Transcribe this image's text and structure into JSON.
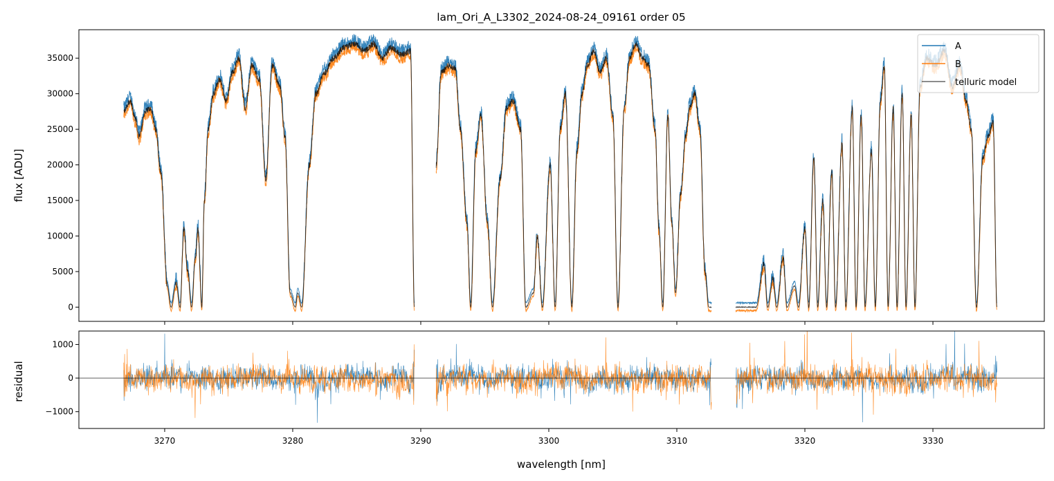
{
  "chart_data": [
    {
      "type": "line",
      "title": "lam_Ori_A_L3302_2024-08-24_09161  order 05",
      "xlabel": "",
      "ylabel": "flux [ADU]",
      "xlim": [
        3263.3,
        3338.7
      ],
      "ylim": [
        -2000,
        39000
      ],
      "y_ticks": [
        0,
        5000,
        10000,
        15000,
        20000,
        25000,
        30000,
        35000
      ],
      "y_tick_labels": [
        "0",
        "5000",
        "10000",
        "15000",
        "20000",
        "25000",
        "30000",
        "35000"
      ],
      "x_ticks": [
        3270,
        3280,
        3290,
        3300,
        3310,
        3320,
        3330
      ],
      "legend_position": "top-right",
      "legend": [
        "A",
        "B",
        "telluric model"
      ],
      "gaps_nm": [
        [
          3289.5,
          3291.2
        ],
        [
          3312.7,
          3314.6
        ]
      ],
      "series": [
        {
          "name": "A",
          "color": "#1f77b4"
        },
        {
          "name": "B",
          "color": "#ff7f0e"
        },
        {
          "name": "telluric model",
          "color": "#000000"
        }
      ],
      "model_points": [
        [
          3266.8,
          27500
        ],
        [
          3267.3,
          29000
        ],
        [
          3267.7,
          26500
        ],
        [
          3268.0,
          24000
        ],
        [
          3268.5,
          27500
        ],
        [
          3268.9,
          28000
        ],
        [
          3269.3,
          25000
        ],
        [
          3269.7,
          19000
        ],
        [
          3270.2,
          3000
        ],
        [
          3270.5,
          0
        ],
        [
          3270.9,
          3500
        ],
        [
          3271.2,
          0
        ],
        [
          3271.5,
          11000
        ],
        [
          3271.8,
          5000
        ],
        [
          3272.1,
          0
        ],
        [
          3272.4,
          7000
        ],
        [
          3272.6,
          11000
        ],
        [
          3272.9,
          0
        ],
        [
          3273.1,
          15000
        ],
        [
          3273.4,
          25000
        ],
        [
          3273.8,
          30000
        ],
        [
          3274.3,
          32000
        ],
        [
          3274.8,
          29000
        ],
        [
          3275.3,
          33000
        ],
        [
          3275.8,
          35000
        ],
        [
          3276.3,
          28000
        ],
        [
          3276.8,
          34000
        ],
        [
          3277.4,
          32000
        ],
        [
          3277.9,
          18000
        ],
        [
          3278.4,
          34000
        ],
        [
          3279.0,
          31000
        ],
        [
          3279.4,
          24000
        ],
        [
          3279.8,
          2000
        ],
        [
          3280.2,
          0
        ],
        [
          3280.4,
          2000
        ],
        [
          3280.7,
          0
        ],
        [
          3281.3,
          20000
        ],
        [
          3281.8,
          30000
        ],
        [
          3282.5,
          33000
        ],
        [
          3283.2,
          35000
        ],
        [
          3284.0,
          36500
        ],
        [
          3284.8,
          37000
        ],
        [
          3285.6,
          36000
        ],
        [
          3286.3,
          37000
        ],
        [
          3287.0,
          35000
        ],
        [
          3287.7,
          36500
        ],
        [
          3288.5,
          35500
        ],
        [
          3289.2,
          36000
        ],
        [
          3289.5,
          0
        ],
        [
          3291.2,
          20000
        ],
        [
          3291.6,
          33000
        ],
        [
          3292.2,
          34000
        ],
        [
          3292.7,
          33500
        ],
        [
          3293.1,
          25000
        ],
        [
          3293.6,
          12000
        ],
        [
          3293.9,
          0
        ],
        [
          3294.3,
          22000
        ],
        [
          3294.7,
          27000
        ],
        [
          3295.2,
          12000
        ],
        [
          3295.6,
          0
        ],
        [
          3296.2,
          18000
        ],
        [
          3296.7,
          28000
        ],
        [
          3297.2,
          29000
        ],
        [
          3297.8,
          25000
        ],
        [
          3298.2,
          0
        ],
        [
          3298.8,
          2000
        ],
        [
          3299.1,
          10000
        ],
        [
          3299.5,
          0
        ],
        [
          3300.1,
          20000
        ],
        [
          3300.5,
          0
        ],
        [
          3300.9,
          25000
        ],
        [
          3301.3,
          30000
        ],
        [
          3301.8,
          0
        ],
        [
          3302.2,
          22000
        ],
        [
          3302.6,
          30000
        ],
        [
          3303.0,
          34000
        ],
        [
          3303.5,
          36000
        ],
        [
          3304.0,
          33000
        ],
        [
          3304.5,
          35000
        ],
        [
          3305.0,
          27000
        ],
        [
          3305.4,
          0
        ],
        [
          3305.9,
          28000
        ],
        [
          3306.3,
          35000
        ],
        [
          3306.8,
          37000
        ],
        [
          3307.3,
          35000
        ],
        [
          3307.8,
          34000
        ],
        [
          3308.3,
          25000
        ],
        [
          3308.6,
          11000
        ],
        [
          3308.9,
          0
        ],
        [
          3309.3,
          27000
        ],
        [
          3309.6,
          12000
        ],
        [
          3309.9,
          2000
        ],
        [
          3310.3,
          16000
        ],
        [
          3310.7,
          24000
        ],
        [
          3311.0,
          28000
        ],
        [
          3311.4,
          30000
        ],
        [
          3311.8,
          25000
        ],
        [
          3312.2,
          5000
        ],
        [
          3312.5,
          0
        ],
        [
          3312.7,
          0
        ],
        [
          3314.6,
          0
        ],
        [
          3315.5,
          0
        ],
        [
          3316.2,
          0
        ],
        [
          3316.8,
          6000
        ],
        [
          3317.1,
          0
        ],
        [
          3317.5,
          4000
        ],
        [
          3317.8,
          0
        ],
        [
          3318.3,
          7000
        ],
        [
          3318.6,
          0
        ],
        [
          3319.2,
          3000
        ],
        [
          3319.5,
          0
        ],
        [
          3320.0,
          11000
        ],
        [
          3320.3,
          0
        ],
        [
          3320.7,
          21000
        ],
        [
          3321.0,
          0
        ],
        [
          3321.4,
          15000
        ],
        [
          3321.7,
          0
        ],
        [
          3322.1,
          19000
        ],
        [
          3322.4,
          0
        ],
        [
          3322.9,
          23000
        ],
        [
          3323.2,
          0
        ],
        [
          3323.7,
          28000
        ],
        [
          3324.0,
          0
        ],
        [
          3324.4,
          27000
        ],
        [
          3324.7,
          0
        ],
        [
          3325.2,
          22000
        ],
        [
          3325.5,
          0
        ],
        [
          3325.9,
          29000
        ],
        [
          3326.2,
          34000
        ],
        [
          3326.5,
          0
        ],
        [
          3326.9,
          28000
        ],
        [
          3327.2,
          0
        ],
        [
          3327.6,
          30000
        ],
        [
          3327.9,
          0
        ],
        [
          3328.3,
          27000
        ],
        [
          3328.6,
          0
        ],
        [
          3329.0,
          31000
        ],
        [
          3329.5,
          35000
        ],
        [
          3330.2,
          34000
        ],
        [
          3330.9,
          36000
        ],
        [
          3331.5,
          31000
        ],
        [
          3332.1,
          34000
        ],
        [
          3332.6,
          29000
        ],
        [
          3333.0,
          25000
        ],
        [
          3333.4,
          0
        ],
        [
          3333.9,
          21000
        ],
        [
          3334.3,
          24000
        ],
        [
          3334.7,
          26000
        ],
        [
          3335.0,
          0
        ]
      ]
    },
    {
      "type": "line",
      "title": "",
      "xlabel": "wavelength [nm]",
      "ylabel": "residual",
      "xlim": [
        3263.3,
        3338.7
      ],
      "ylim": [
        -1500,
        1400
      ],
      "y_ticks": [
        -1000,
        0,
        1000
      ],
      "y_tick_labels": [
        "−1000",
        "0",
        "1000"
      ],
      "x_ticks": [
        3270,
        3280,
        3290,
        3300,
        3310,
        3320,
        3330
      ],
      "x_tick_labels": [
        "3270",
        "3280",
        "3290",
        "3300",
        "3310",
        "3320",
        "3330"
      ],
      "reference_line": 0,
      "series": [
        {
          "name": "A",
          "color": "#1f77b4",
          "approx_amplitude": 350
        },
        {
          "name": "B",
          "color": "#ff7f0e",
          "approx_amplitude": 400
        }
      ],
      "segments_nm": [
        [
          3266.8,
          3289.5
        ],
        [
          3291.2,
          3312.7
        ],
        [
          3314.6,
          3335.0
        ]
      ]
    }
  ]
}
